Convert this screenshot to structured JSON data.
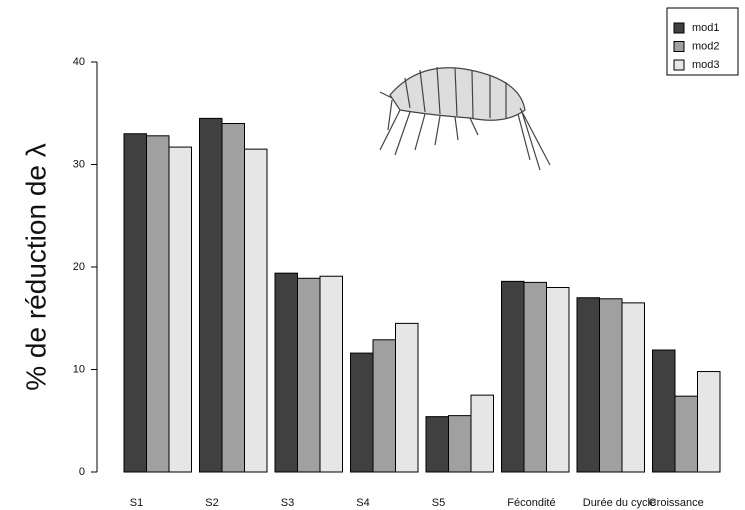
{
  "chart_data": {
    "type": "bar",
    "ylabel": "% de réduction de λ",
    "categories": [
      "S1",
      "S2",
      "S3",
      "S4",
      "S5",
      "Fécondité",
      "Durée du cycle",
      "Croissance"
    ],
    "series": [
      {
        "name": "mod1",
        "color": "#404040",
        "values": [
          33.0,
          34.5,
          19.4,
          11.6,
          5.4,
          18.6,
          17.0,
          11.9
        ]
      },
      {
        "name": "mod2",
        "color": "#a0a0a0",
        "values": [
          32.8,
          34.0,
          18.9,
          12.9,
          5.5,
          18.5,
          16.9,
          7.4
        ]
      },
      {
        "name": "mod3",
        "color": "#e6e6e6",
        "values": [
          31.7,
          31.5,
          19.1,
          14.5,
          7.5,
          18.0,
          16.5,
          9.8
        ]
      }
    ],
    "ylim": [
      0,
      40
    ],
    "yticks": [
      0,
      10,
      20,
      30,
      40
    ],
    "grid": false,
    "legend": "top-right"
  }
}
